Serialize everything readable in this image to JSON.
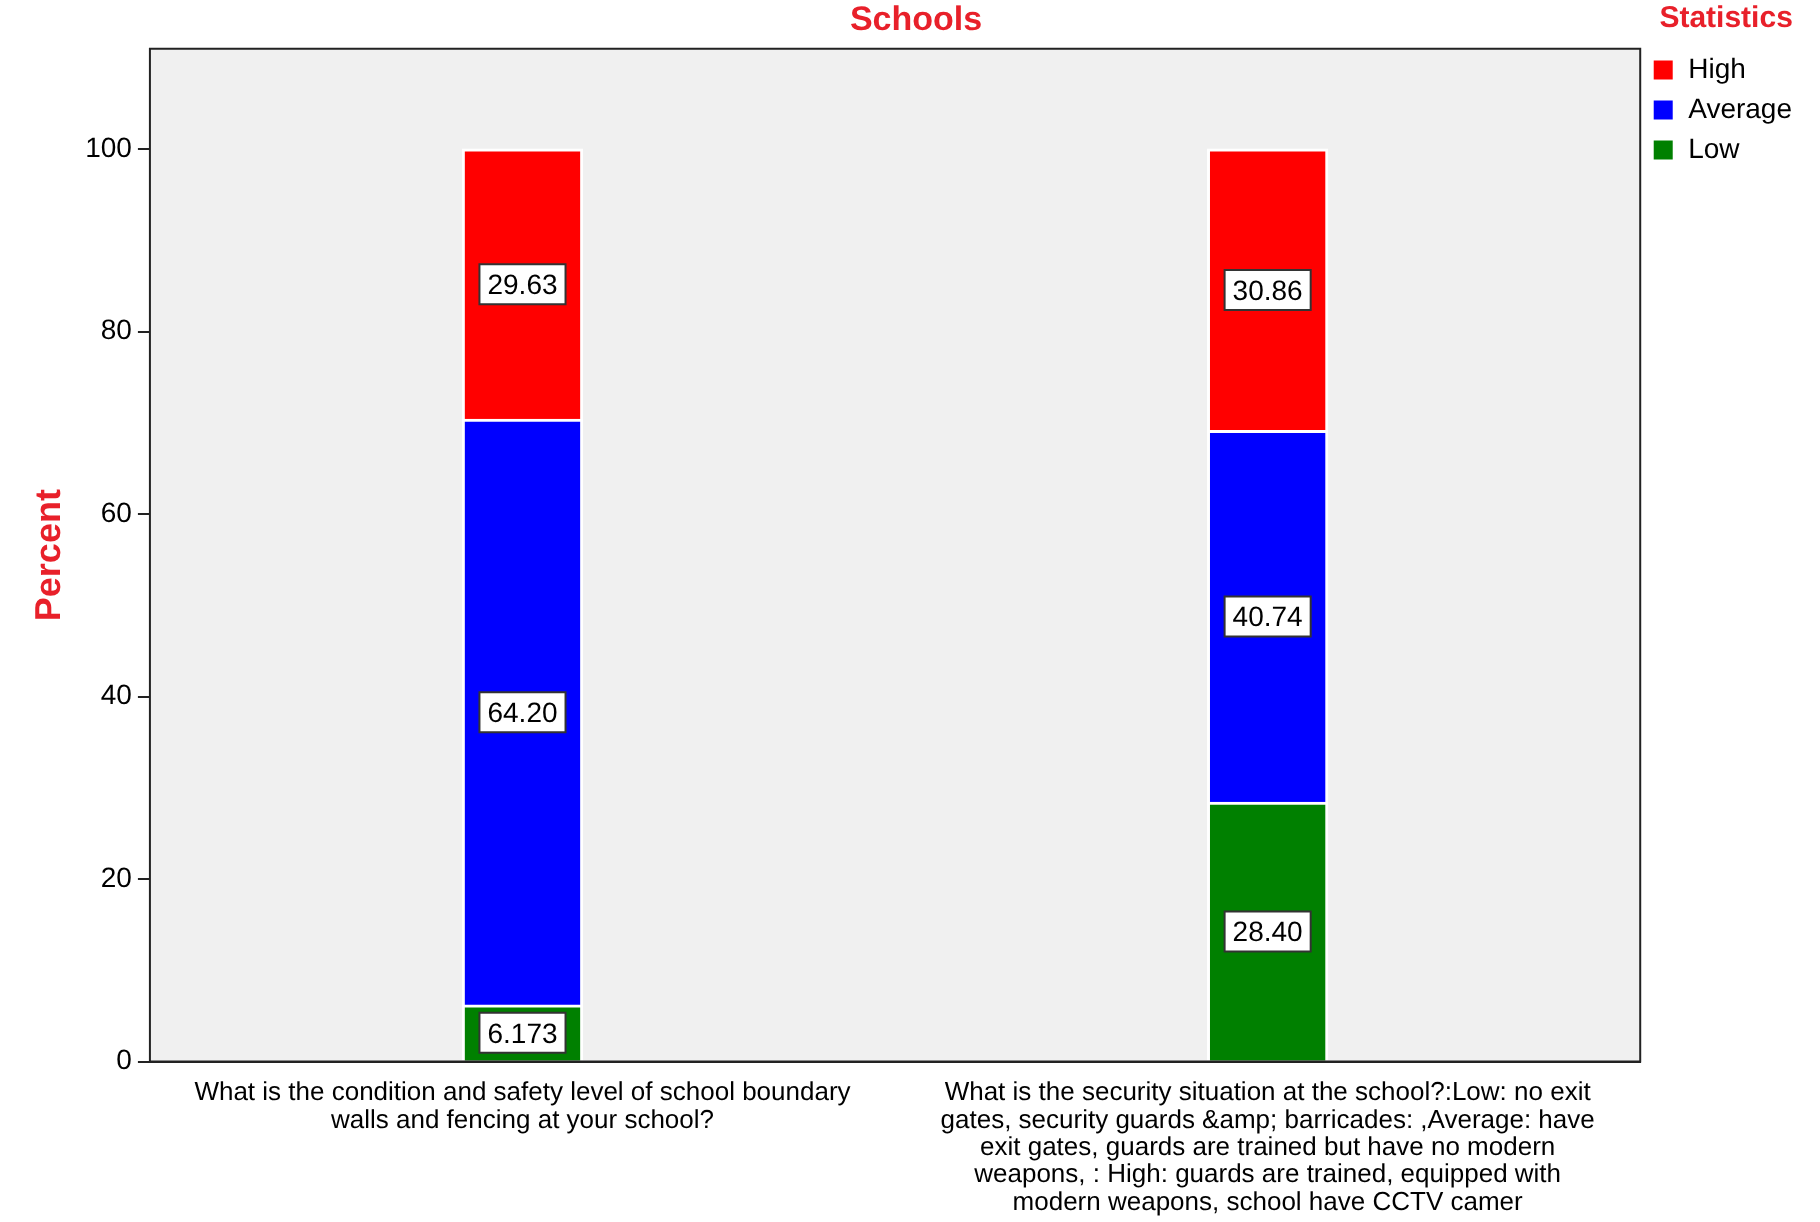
{
  "chart_data": {
    "type": "bar",
    "stacked": true,
    "title": "Schools",
    "ylabel": "Percent",
    "legend_title": "Statistics",
    "legend": "right",
    "grid": false,
    "categories": [
      "What is the condition and safety level of school boundary walls and fencing at your school?",
      "What is the security situation at the school?:Low: no exit gates, security guards &amp; barricades: ,Average: have exit gates, guards are trained but have no modern weapons, : High: guards are trained, equipped with modern weapons, school have CCTV camer"
    ],
    "series": [
      {
        "name": "Low",
        "color": "#008000",
        "values": [
          6.173,
          28.4
        ],
        "value_labels": [
          "6.173",
          "28.40"
        ]
      },
      {
        "name": "Average",
        "color": "#0000ff",
        "values": [
          64.2,
          40.74
        ],
        "value_labels": [
          "64.20",
          "40.74"
        ]
      },
      {
        "name": "High",
        "color": "#ff0000",
        "values": [
          29.63,
          30.86
        ],
        "value_labels": [
          "29.63",
          "30.86"
        ]
      }
    ],
    "ylim": [
      0,
      111
    ],
    "yticks": [
      0,
      20,
      40,
      60,
      80,
      100
    ]
  }
}
